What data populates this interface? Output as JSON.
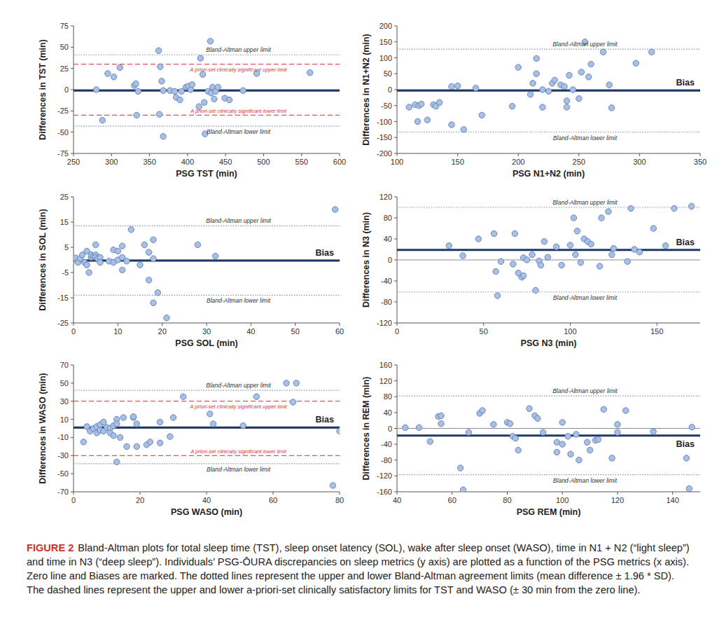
{
  "chart_data": [
    {
      "type": "scatter",
      "x_label": "PSG TST (min)",
      "y_label": "Differences in TST (min)",
      "xlim": [
        250,
        600
      ],
      "ylim": [
        -75,
        75
      ],
      "xticks": [
        250,
        300,
        350,
        400,
        450,
        500,
        550,
        600
      ],
      "yticks": [
        -75,
        -50,
        -25,
        0,
        25,
        50,
        75
      ],
      "color": "#a9bfe3",
      "marker": "circle",
      "x": [
        280,
        288,
        295,
        303,
        311,
        330,
        332,
        333,
        335,
        362,
        364,
        363,
        366,
        368,
        368,
        377,
        383,
        385,
        390,
        392,
        398,
        401,
        404,
        406,
        415,
        417,
        420,
        422,
        423,
        427,
        430,
        431,
        433,
        435,
        437,
        440,
        449,
        455,
        473,
        491,
        561
      ],
      "values": [
        0,
        -36,
        19,
        15,
        26,
        5,
        7,
        -30,
        -2,
        46,
        27,
        -29,
        10,
        -1,
        -55,
        -1,
        -2,
        -9,
        -12,
        -2,
        3,
        4,
        0,
        6,
        -20,
        37,
        18,
        -15,
        -52,
        -2,
        57,
        -4,
        3,
        -11,
        -2,
        3,
        -10,
        -12,
        -1,
        19,
        20
      ],
      "reference_lines": [
        {
          "type": "zero",
          "value": 0,
          "color": "#8c8c8c",
          "line_style": "solid"
        },
        {
          "type": "bias",
          "value": -1,
          "color": "#1f3864",
          "line_style": "solid"
        },
        {
          "type": "agreement_limit",
          "name": "Bland-Altman upper limit",
          "value": 41,
          "color": "#8593a8",
          "line_style": "dotted"
        },
        {
          "type": "agreement_limit",
          "name": "Bland-Altman lower limit",
          "value": -43,
          "color": "#8593a8",
          "line_style": "dotted"
        },
        {
          "type": "clinical_limit",
          "name": "A priori-set clinically significant upper limit",
          "value": 30,
          "color": "#e05555",
          "line_style": "dashed"
        },
        {
          "type": "clinical_limit",
          "name": "A priori-set clinically significant lower limit",
          "value": -30,
          "color": "#e05555",
          "line_style": "dashed"
        }
      ]
    },
    {
      "type": "scatter",
      "x_label": "PSG N1+N2 (min)",
      "y_label": "Differences in N1+N2 (min)",
      "xlim": [
        100,
        350
      ],
      "ylim": [
        -200,
        200
      ],
      "xticks": [
        100,
        150,
        200,
        250,
        300,
        350
      ],
      "yticks": [
        -200,
        -150,
        -100,
        -50,
        0,
        50,
        100,
        150,
        200
      ],
      "color": "#a9bfe3",
      "marker": "circle",
      "x": [
        110,
        115,
        117,
        118,
        120,
        125,
        130,
        132,
        135,
        145,
        145,
        150,
        155,
        165,
        170,
        195,
        200,
        210,
        212,
        215,
        215,
        220,
        220,
        225,
        228,
        230,
        235,
        238,
        240,
        240,
        242,
        245,
        250,
        252,
        255,
        258,
        260,
        270,
        275,
        277,
        297,
        310
      ],
      "values": [
        -55,
        -47,
        -100,
        -50,
        -45,
        -95,
        -47,
        -52,
        -40,
        10,
        -110,
        12,
        -125,
        5,
        -80,
        -52,
        70,
        -15,
        20,
        98,
        50,
        0,
        -55,
        -5,
        20,
        30,
        15,
        10,
        -35,
        -55,
        45,
        0,
        -28,
        55,
        150,
        40,
        80,
        118,
        15,
        -57,
        83,
        118
      ],
      "reference_lines": [
        {
          "type": "zero",
          "value": 0,
          "color": "#8c8c8c",
          "line_style": "solid"
        },
        {
          "type": "bias",
          "name": "Bias",
          "value": -3,
          "color": "#1f3864",
          "line_style": "solid"
        },
        {
          "type": "agreement_limit",
          "name": "Bland-Altman upper limit",
          "value": 127,
          "color": "#8593a8",
          "line_style": "dotted"
        },
        {
          "type": "agreement_limit",
          "name": "Bland-Altman lower limit",
          "value": -133,
          "color": "#8593a8",
          "line_style": "dotted"
        }
      ]
    },
    {
      "type": "scatter",
      "x_label": "PSG SOL (min)",
      "y_label": "Differences in SOL (min)",
      "xlim": [
        0,
        60
      ],
      "ylim": [
        -25,
        25
      ],
      "xticks": [
        0,
        10,
        20,
        30,
        40,
        50,
        60
      ],
      "yticks": [
        -25,
        -15,
        -5,
        5,
        15,
        25
      ],
      "color": "#a9bfe3",
      "marker": "circle",
      "x": [
        0,
        0.5,
        1,
        1.5,
        2,
        2.5,
        3,
        3,
        3.5,
        4,
        4,
        4.5,
        5,
        5,
        5.5,
        5,
        6,
        6,
        8,
        9,
        9,
        10,
        10,
        11,
        11,
        11,
        12,
        13,
        15,
        16,
        17,
        17,
        18,
        18,
        19,
        18,
        21,
        28,
        32,
        59
      ],
      "values": [
        0.5,
        0.8,
        -1,
        0.5,
        2,
        -1,
        3.5,
        -2,
        -5,
        1,
        2,
        1.5,
        2,
        1,
        0.5,
        6,
        1,
        -1,
        -0.5,
        4,
        -1,
        0,
        3.5,
        5.5,
        -4,
        1,
        -0.5,
        12,
        -2,
        6,
        -8,
        3,
        8,
        -17,
        -13,
        0.5,
        -23,
        6,
        1.5,
        20
      ],
      "reference_lines": [
        {
          "type": "zero",
          "value": 0,
          "color": "#8c8c8c",
          "line_style": "solid"
        },
        {
          "type": "bias",
          "name": "Bias",
          "value": -0.3,
          "color": "#1f3864",
          "line_style": "solid"
        },
        {
          "type": "agreement_limit",
          "name": "Bland-Altman upper limit",
          "value": 13.5,
          "color": "#8593a8",
          "line_style": "dotted"
        },
        {
          "type": "agreement_limit",
          "name": "Bland-Altman lower limit",
          "value": -14,
          "color": "#8593a8",
          "line_style": "dotted"
        }
      ]
    },
    {
      "type": "scatter",
      "x_label": "PSG N3 (min)",
      "y_label": "Differences in N3 (min)",
      "xlim": [
        0,
        175
      ],
      "ylim": [
        -120,
        120
      ],
      "xticks": [
        0,
        50,
        100,
        150
      ],
      "yticks": [
        -120,
        -80,
        -40,
        0,
        40,
        80,
        120
      ],
      "color": "#a9bfe3",
      "marker": "circle",
      "x": [
        30,
        38,
        47,
        56,
        57,
        58,
        60,
        67,
        68,
        70,
        72,
        73,
        73,
        75,
        78,
        80,
        82,
        83,
        85,
        87,
        92,
        95,
        100,
        102,
        103,
        104,
        106,
        108,
        110,
        112,
        117,
        118,
        122,
        124,
        125,
        133,
        135,
        137,
        140,
        148,
        155,
        160,
        170
      ],
      "values": [
        27,
        8,
        40,
        50,
        -22,
        -68,
        -3,
        -8,
        50,
        -25,
        -33,
        -30,
        4,
        0,
        10,
        -58,
        -2,
        -10,
        35,
        5,
        25,
        -10,
        28,
        80,
        10,
        55,
        -5,
        40,
        35,
        30,
        -12,
        80,
        92,
        10,
        22,
        -3,
        98,
        20,
        15,
        60,
        27,
        98,
        102
      ],
      "reference_lines": [
        {
          "type": "zero",
          "value": 0,
          "color": "#8c8c8c",
          "line_style": "solid"
        },
        {
          "type": "bias",
          "name": "Bias",
          "value": 19,
          "color": "#1f3864",
          "line_style": "solid"
        },
        {
          "type": "agreement_limit",
          "name": "Bland-Altman upper limit",
          "value": 100,
          "color": "#8593a8",
          "line_style": "dotted"
        },
        {
          "type": "agreement_limit",
          "name": "Bland-Altman lower limit",
          "value": -61,
          "color": "#8593a8",
          "line_style": "dotted"
        }
      ]
    },
    {
      "type": "scatter",
      "x_label": "PSG WASO (min)",
      "y_label": "Differences in WASO (min)",
      "xlim": [
        0,
        80
      ],
      "ylim": [
        -70,
        70
      ],
      "xticks": [
        0,
        20,
        40,
        60,
        80
      ],
      "yticks": [
        -70,
        -50,
        -30,
        -10,
        10,
        30,
        50,
        70
      ],
      "color": "#a9bfe3",
      "marker": "circle",
      "x": [
        3,
        4,
        5,
        6,
        7,
        7,
        8,
        8,
        9,
        9,
        10,
        11,
        11,
        12,
        12,
        13,
        13,
        13,
        14,
        15,
        16,
        18,
        18,
        19,
        19,
        22,
        23,
        26,
        26,
        29,
        30,
        33,
        41,
        42,
        51,
        55,
        64,
        66,
        67,
        78,
        80
      ],
      "values": [
        -15,
        2,
        -3,
        0,
        2,
        -5,
        4,
        -2,
        7,
        -3,
        1,
        0,
        -5,
        -8,
        3,
        10,
        -37,
        5,
        -10,
        12,
        -20,
        12,
        13,
        -20,
        5,
        -18,
        -15,
        -16,
        7,
        -9,
        12,
        35,
        16,
        5,
        3,
        35,
        50,
        29,
        50,
        -63,
        -3
      ],
      "reference_lines": [
        {
          "type": "zero",
          "value": 0,
          "color": "#8c8c8c",
          "line_style": "solid"
        },
        {
          "type": "bias",
          "name": "Bias",
          "value": 1,
          "color": "#1f3864",
          "line_style": "solid"
        },
        {
          "type": "agreement_limit",
          "name": "Bland-Altman upper limit",
          "value": 42,
          "color": "#8593a8",
          "line_style": "dotted"
        },
        {
          "type": "agreement_limit",
          "name": "Bland-Altman lower limit",
          "value": -39,
          "color": "#8593a8",
          "line_style": "dotted"
        },
        {
          "type": "clinical_limit",
          "name": "A priori-set clinically significant upper limit",
          "value": 30,
          "color": "#e05555",
          "line_style": "dashed"
        },
        {
          "type": "clinical_limit",
          "name": "A priori-set clinically significant lower limit",
          "value": -30,
          "color": "#e05555",
          "line_style": "dashed"
        }
      ]
    },
    {
      "type": "scatter",
      "x_label": "PSG REM (min)",
      "y_label": "Differences in REM (min)",
      "xlim": [
        40,
        150
      ],
      "ylim": [
        -160,
        160
      ],
      "xticks": [
        40,
        60,
        80,
        100,
        120,
        140
      ],
      "yticks": [
        -160,
        -120,
        -80,
        -40,
        0,
        40,
        80,
        120,
        160
      ],
      "color": "#a9bfe3",
      "marker": "circle",
      "x": [
        43,
        48,
        52,
        55,
        56,
        56,
        63,
        64,
        66,
        70,
        71,
        75,
        80,
        81,
        82,
        83,
        84,
        88,
        90,
        91,
        93,
        98,
        98,
        100,
        100,
        102,
        103,
        105,
        106,
        109,
        110,
        112,
        113,
        115,
        118,
        120,
        120,
        123,
        133,
        145,
        146,
        147
      ],
      "values": [
        2,
        2,
        -33,
        30,
        32,
        12,
        -100,
        -155,
        -10,
        38,
        45,
        10,
        15,
        12,
        -20,
        -25,
        -55,
        50,
        32,
        25,
        -10,
        -60,
        -35,
        15,
        -40,
        -20,
        -65,
        -15,
        -80,
        -35,
        -55,
        -30,
        -28,
        48,
        -75,
        10,
        -10,
        45,
        -8,
        -75,
        -152,
        3
      ],
      "reference_lines": [
        {
          "type": "zero",
          "value": 0,
          "color": "#8c8c8c",
          "line_style": "solid"
        },
        {
          "type": "bias",
          "name": "Bias",
          "value": -18,
          "color": "#1f3864",
          "line_style": "solid"
        },
        {
          "type": "agreement_limit",
          "name": "Bland-Altman upper limit",
          "value": 82,
          "color": "#8593a8",
          "line_style": "dotted"
        },
        {
          "type": "agreement_limit",
          "name": "Bland-Altman lower limit",
          "value": -117,
          "color": "#8593a8",
          "line_style": "dotted"
        }
      ]
    }
  ],
  "caption": {
    "label": "FIGURE 2",
    "text": "Bland-Altman plots for total sleep time (TST), sleep onset latency (SOL), wake after sleep onset (WASO), time in N1 + N2 (“light sleep”) and time in N3 (“deep sleep”). Individuals’ PSG-ŌURA discrepancies on sleep metrics (y axis) are plotted as a function of the PSG metrics (x axis). Zero line and Biases are marked. The dotted lines represent the upper and lower Bland-Altman agreement limits (mean difference ± 1.96 * SD). The dashed lines represent the upper and lower a-priori-set clinically satisfactory limits for TST and WASO (± 30 min from the zero line)."
  }
}
